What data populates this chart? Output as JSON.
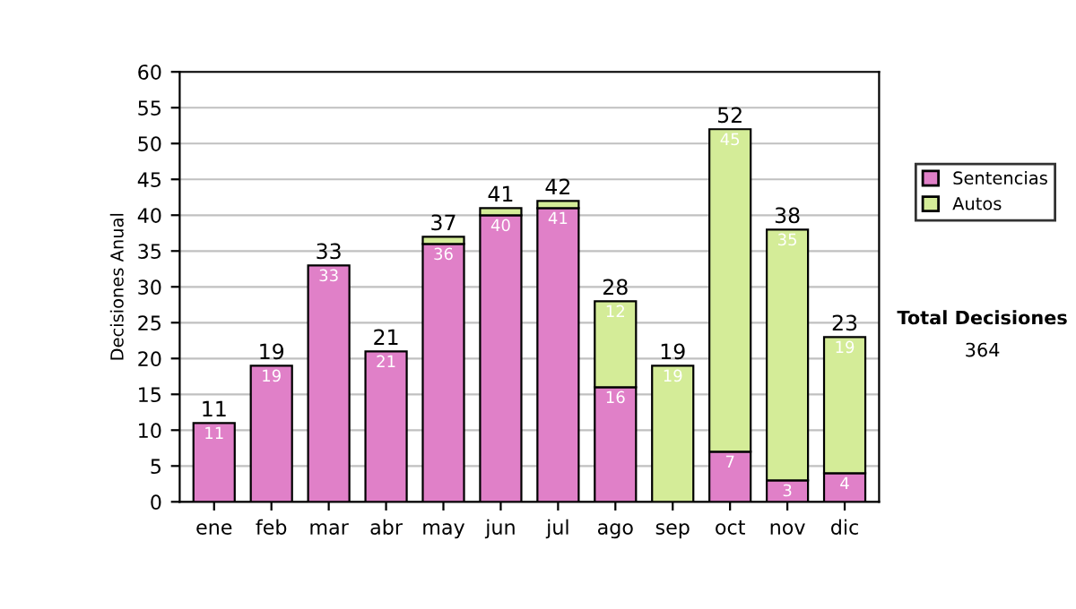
{
  "chart_data": {
    "type": "bar",
    "stacked": true,
    "ylabel": "Decisiones Anual",
    "categories": [
      "ene",
      "feb",
      "mar",
      "abr",
      "may",
      "jun",
      "jul",
      "ago",
      "sep",
      "oct",
      "nov",
      "dic"
    ],
    "series": [
      {
        "name": "Sentencias",
        "color": "#e080c8",
        "values": [
          11,
          19,
          33,
          21,
          36,
          40,
          41,
          16,
          null,
          7,
          3,
          4
        ],
        "value_labels": [
          "11",
          "19",
          "33",
          "21",
          "36",
          "40",
          "41",
          "16",
          null,
          "7",
          "3",
          "4"
        ]
      },
      {
        "name": "Autos",
        "color": "#d4ec98",
        "values": [
          null,
          null,
          null,
          null,
          1,
          1,
          1,
          12,
          19,
          45,
          35,
          19
        ],
        "value_labels": [
          null,
          null,
          null,
          null,
          null,
          null,
          null,
          "12",
          "19",
          "45",
          "35",
          "19"
        ]
      }
    ],
    "totals": [
      "11",
      "19",
      "33",
      "21",
      "37",
      "41",
      "42",
      "28",
      "19",
      "52",
      "38",
      "23"
    ],
    "ylim": [
      0,
      60
    ],
    "yticks": [
      0,
      5,
      10,
      15,
      20,
      25,
      30,
      35,
      40,
      45,
      50,
      55,
      60
    ],
    "grid": "y",
    "legend": "right",
    "annotations": [
      "Total Decisiones",
      "364"
    ]
  }
}
